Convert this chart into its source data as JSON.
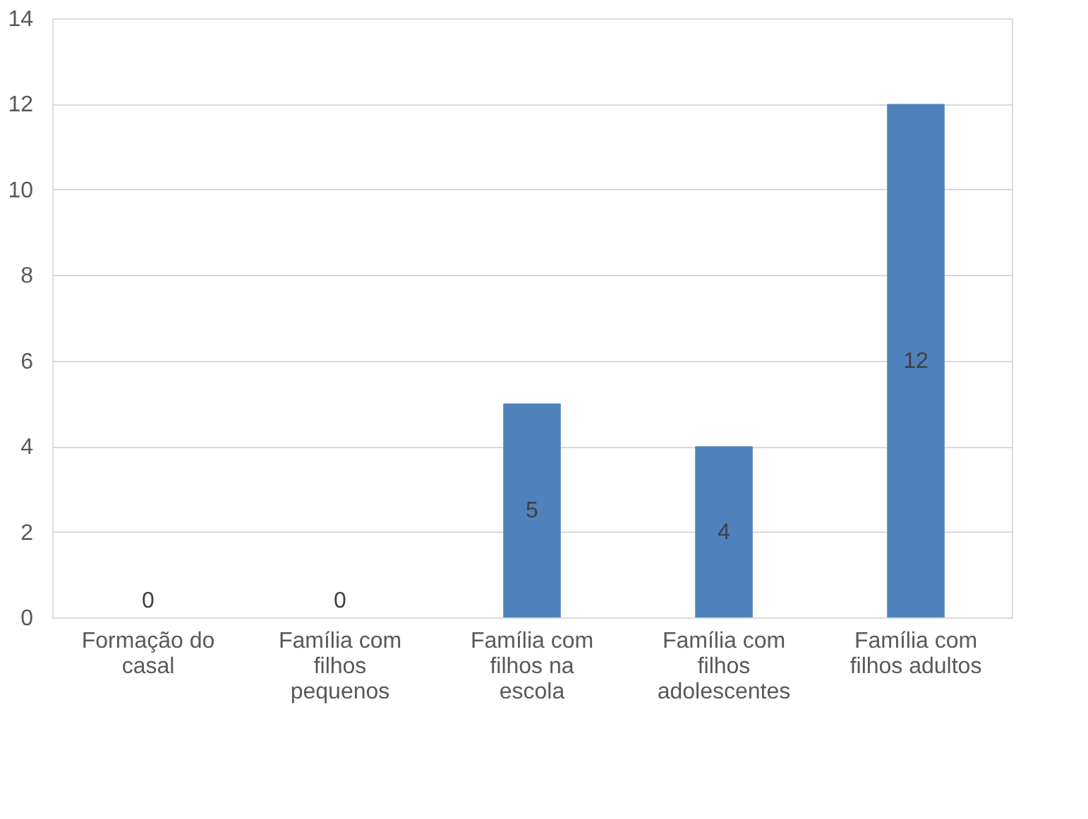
{
  "chart_data": {
    "type": "bar",
    "categories": [
      "Formação do casal",
      "Família com filhos pequenos",
      "Família com filhos na escola",
      "Família com filhos adolescentes",
      "Família com filhos adultos"
    ],
    "values": [
      0,
      0,
      5,
      4,
      12
    ],
    "color": "#4f81bd",
    "ylim": [
      0,
      14
    ],
    "yticks": [
      0,
      2,
      4,
      6,
      8,
      10,
      12,
      14
    ],
    "grid": "y",
    "data_labels": true
  }
}
